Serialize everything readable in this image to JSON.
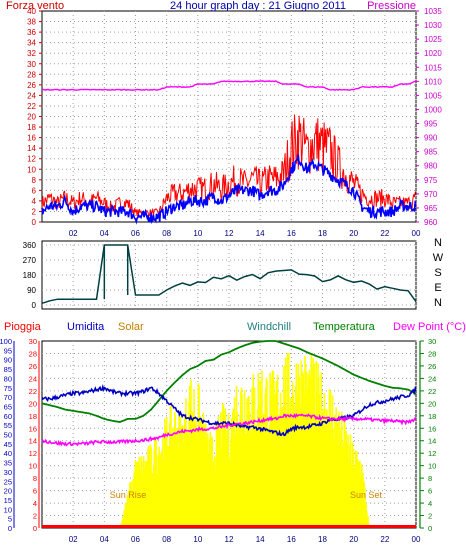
{
  "colors": {
    "wind_red": "#ff0000",
    "wind_blue": "#0000ff",
    "pressure": "#ff00ff",
    "direction": "#004040",
    "rain": "#ff0000",
    "humidity": "#0000c0",
    "solar_fill": "#ffff00",
    "solar_label": "#c08000",
    "windchill": "#208080",
    "temperature": "#008000",
    "dewpoint": "#ff00ff",
    "sun_label": "#d08000",
    "axis_dark": "#008080"
  },
  "chart_data": [
    {
      "id": "wind_pressure",
      "type": "line",
      "title": "24 hour graph day : 21 Giugno 2011",
      "left_axis_label": "Forza vento",
      "right_axis_label": "Pressione",
      "x_ticks": [
        "02",
        "04",
        "06",
        "08",
        "10",
        "12",
        "14",
        "16",
        "18",
        "20",
        "22",
        "00"
      ],
      "y_left_ticks": [
        "0",
        "2",
        "4",
        "6",
        "8",
        "10",
        "12",
        "14",
        "16",
        "18",
        "20",
        "22",
        "24",
        "26",
        "28",
        "30",
        "32",
        "34",
        "36",
        "38",
        "40"
      ],
      "y_left_range": [
        0,
        40
      ],
      "y_right_ticks": [
        "960",
        "965",
        "970",
        "975",
        "980",
        "985",
        "990",
        "995",
        "1000",
        "1005",
        "1010",
        "1015",
        "1020",
        "1025",
        "1030",
        "1035"
      ],
      "y_right_range": [
        960,
        1035
      ],
      "hours": [
        0,
        0.5,
        1,
        1.5,
        2,
        2.5,
        3,
        3.5,
        4,
        4.5,
        5,
        5.5,
        6,
        6.5,
        7,
        7.5,
        8,
        8.5,
        9,
        9.5,
        10,
        10.5,
        11,
        11.5,
        12,
        12.5,
        13,
        13.5,
        14,
        14.5,
        15,
        15.5,
        16,
        16.5,
        17,
        17.5,
        18,
        18.5,
        19,
        19.5,
        20,
        20.5,
        21,
        21.5,
        22,
        22.5,
        23,
        23.5,
        24
      ],
      "series": [
        {
          "key": "gust",
          "values": [
            4,
            5,
            4,
            5,
            4,
            5,
            4,
            5,
            4,
            3,
            4,
            4,
            2,
            2,
            2,
            2,
            5,
            6,
            6,
            7,
            7,
            7,
            8,
            7,
            8,
            9,
            8,
            9,
            8,
            9,
            9,
            10,
            16,
            18,
            15,
            17,
            16,
            15,
            12,
            10,
            8,
            6,
            5,
            5,
            5,
            4,
            4,
            4,
            5
          ]
        },
        {
          "key": "wind",
          "values": [
            2,
            3,
            3,
            4,
            2,
            3,
            3,
            3,
            2,
            2,
            2,
            2,
            1,
            1,
            1,
            1,
            2,
            3,
            3,
            4,
            4,
            4,
            5,
            4,
            5,
            6,
            6,
            6,
            5,
            6,
            6,
            7,
            10,
            12,
            10,
            11,
            10,
            9,
            8,
            7,
            6,
            3,
            2,
            2,
            2,
            2,
            3,
            3,
            3
          ]
        },
        {
          "key": "pressure",
          "values": [
            1007,
            1007,
            1007,
            1007,
            1007,
            1007,
            1007,
            1007,
            1007,
            1007,
            1007,
            1007,
            1007,
            1007,
            1007,
            1007,
            1008,
            1008,
            1008,
            1008,
            1009,
            1009,
            1009,
            1010,
            1010,
            1010,
            1010,
            1010,
            1010,
            1010,
            1010,
            1009,
            1009,
            1009,
            1008,
            1008,
            1008,
            1007,
            1007,
            1007,
            1007,
            1008,
            1008,
            1008,
            1008,
            1008,
            1009,
            1009,
            1010
          ]
        }
      ]
    },
    {
      "id": "wind_direction",
      "type": "line",
      "y_ticks": [
        "0",
        "90",
        "180",
        "270",
        "360"
      ],
      "y_range": [
        0,
        360
      ],
      "right_labels": [
        "N",
        "W",
        "S",
        "E",
        "N"
      ],
      "hours": [
        0,
        0.5,
        1,
        1.5,
        2,
        2.5,
        3,
        3.5,
        4,
        4.5,
        5,
        5.5,
        6,
        6.5,
        7,
        7.5,
        8,
        8.5,
        9,
        9.5,
        10,
        10.5,
        11,
        11.5,
        12,
        12.5,
        13,
        13.5,
        14,
        14.5,
        15,
        15.5,
        16,
        16.5,
        17,
        17.5,
        18,
        18.5,
        19,
        19.5,
        20,
        20.5,
        21,
        21.5,
        22,
        22.5,
        23,
        23.5,
        24
      ],
      "values": [
        10,
        25,
        35,
        35,
        35,
        35,
        35,
        35,
        360,
        360,
        360,
        360,
        60,
        60,
        60,
        60,
        90,
        110,
        120,
        130,
        135,
        140,
        150,
        150,
        160,
        160,
        160,
        170,
        175,
        185,
        190,
        200,
        230,
        200,
        180,
        170,
        160,
        165,
        160,
        150,
        150,
        140,
        120,
        115,
        110,
        100,
        90,
        85,
        20
      ]
    },
    {
      "id": "temp_humidity",
      "type": "line",
      "left_labels": {
        "rain": "Pioggia",
        "humidity": "Umidita",
        "solar": "Solar"
      },
      "right_labels": {
        "windchill": "Windchill",
        "temperature": "Temperatura",
        "dewpoint": "Dew Point (°C)"
      },
      "x_ticks": [
        "02",
        "04",
        "06",
        "08",
        "10",
        "12",
        "14",
        "16",
        "18",
        "20",
        "22",
        "00"
      ],
      "y_humidity_ticks": [
        "0",
        "5",
        "10",
        "15",
        "20",
        "25",
        "30",
        "35",
        "40",
        "45",
        "50",
        "55",
        "60",
        "65",
        "70",
        "75",
        "80",
        "85",
        "90",
        "95",
        "100"
      ],
      "y_humidity_range": [
        0,
        100
      ],
      "y_rain_ticks": [
        "0",
        "2",
        "4",
        "6",
        "8",
        "10",
        "12",
        "14",
        "16",
        "18",
        "20",
        "22",
        "24",
        "26",
        "28",
        "30"
      ],
      "y_rain_range": [
        0,
        30
      ],
      "y_temp_ticks": [
        "0",
        "2",
        "4",
        "6",
        "8",
        "10",
        "12",
        "14",
        "16",
        "18",
        "20",
        "22",
        "24",
        "26",
        "28",
        "30"
      ],
      "y_temp_range": [
        0,
        30
      ],
      "annotations": {
        "sunrise": "Sun Rise",
        "sunset": "Sun Set"
      },
      "hours": [
        0,
        0.5,
        1,
        1.5,
        2,
        2.5,
        3,
        3.5,
        4,
        4.5,
        5,
        5.5,
        6,
        6.5,
        7,
        7.5,
        8,
        8.5,
        9,
        9.5,
        10,
        10.5,
        11,
        11.5,
        12,
        12.5,
        13,
        13.5,
        14,
        14.5,
        15,
        15.5,
        16,
        16.5,
        17,
        17.5,
        18,
        18.5,
        19,
        19.5,
        20,
        20.5,
        21,
        21.5,
        22,
        22.5,
        23,
        23.5,
        24
      ],
      "series": [
        {
          "key": "humidity",
          "values": [
            69,
            69,
            70,
            71,
            72,
            72,
            73,
            74,
            75,
            73,
            72,
            72,
            72,
            73,
            75,
            72,
            68,
            64,
            60,
            59,
            58,
            57,
            56,
            56,
            56,
            55,
            54,
            54,
            53,
            52,
            51,
            50,
            53,
            54,
            54,
            55,
            56,
            58,
            58,
            59,
            60,
            63,
            66,
            67,
            68,
            69,
            70,
            71,
            74
          ]
        },
        {
          "key": "temperature",
          "values": [
            20,
            19.7,
            19.4,
            19,
            18.8,
            18.6,
            18.4,
            18,
            17.5,
            17.2,
            17,
            17.5,
            17.5,
            18,
            19,
            20.5,
            22,
            23.3,
            24.5,
            25.5,
            26,
            26.8,
            27,
            27.8,
            28.2,
            28.8,
            29.3,
            29.7,
            29.9,
            30,
            30,
            29.6,
            29.2,
            28.8,
            28.2,
            27.7,
            27.2,
            26.6,
            26,
            25.3,
            24.6,
            24.1,
            23.6,
            23.2,
            22.8,
            22.5,
            22.4,
            22.2,
            21.5
          ]
        },
        {
          "key": "dewpoint",
          "values": [
            14,
            13.8,
            13.6,
            13.5,
            13.5,
            13.5,
            13.6,
            13.8,
            13.8,
            13.8,
            13.8,
            13.9,
            14,
            14.1,
            14.3,
            14.5,
            15,
            15.2,
            15.5,
            15.6,
            15.8,
            15.9,
            16,
            16.2,
            16.5,
            16.7,
            16.8,
            17,
            17.2,
            17.5,
            17.5,
            18,
            18,
            18,
            18,
            17.8,
            17.6,
            17.5,
            17.5,
            17.5,
            17.5,
            17.5,
            17.4,
            17.3,
            17.2,
            17.2,
            17,
            17,
            17.5
          ]
        },
        {
          "key": "solar",
          "values": [
            0,
            0,
            0,
            0,
            0,
            0,
            0,
            0,
            0,
            0,
            0,
            5,
            10,
            11,
            12,
            14,
            16,
            18,
            16,
            22,
            21,
            15,
            13,
            18,
            16,
            22,
            23,
            22,
            24,
            23,
            22,
            26,
            24,
            26,
            25,
            24,
            22,
            21,
            18,
            15,
            12,
            11,
            0,
            0,
            0,
            0,
            0,
            0,
            0
          ]
        },
        {
          "key": "rain",
          "values": [
            0,
            0,
            0,
            0,
            0,
            0,
            0,
            0,
            0,
            0,
            0,
            0,
            0,
            0,
            0,
            0,
            0,
            0,
            0,
            0,
            0,
            0,
            0,
            0,
            0,
            0,
            0,
            0,
            0,
            0,
            0,
            0,
            0,
            0,
            0,
            0,
            0,
            0,
            0,
            0,
            0,
            0,
            0,
            0,
            0,
            0,
            0,
            0,
            0
          ]
        }
      ]
    }
  ]
}
